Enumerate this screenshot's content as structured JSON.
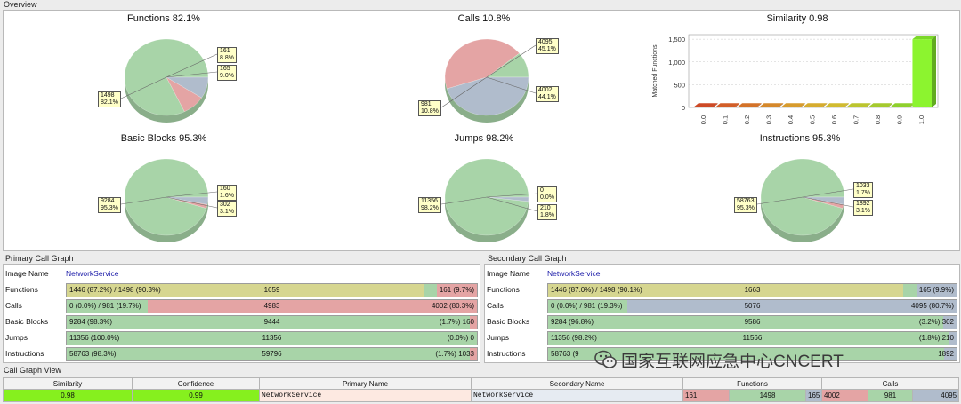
{
  "overview": {
    "label": "Overview",
    "pies": [
      {
        "key": "functions",
        "title": "Functions 82.1%",
        "slices": [
          {
            "value": 1498,
            "pct": "82.1%",
            "color": "#a8d4a8"
          },
          {
            "value": 161,
            "pct": "8.8%",
            "color": "#e4a4a4"
          },
          {
            "value": 165,
            "pct": "9.0%",
            "color": "#b0bccc"
          }
        ]
      },
      {
        "key": "calls",
        "title": "Calls 10.8%",
        "slices": [
          {
            "value": 981,
            "pct": "10.8%",
            "color": "#a8d4a8"
          },
          {
            "value": 4002,
            "pct": "44.1%",
            "color": "#e4a4a4"
          },
          {
            "value": 4095,
            "pct": "45.1%",
            "color": "#b0bccc"
          }
        ]
      },
      {
        "key": "basic_blocks",
        "title": "Basic Blocks 95.3%",
        "slices": [
          {
            "value": 9284,
            "pct": "95.3%",
            "color": "#a8d4a8"
          },
          {
            "value": 160,
            "pct": "1.6%",
            "color": "#e4a4a4"
          },
          {
            "value": 302,
            "pct": "3.1%",
            "color": "#b0bccc"
          }
        ]
      },
      {
        "key": "jumps",
        "title": "Jumps 98.2%",
        "slices": [
          {
            "value": 11356,
            "pct": "98.2%",
            "color": "#a8d4a8"
          },
          {
            "value": 0,
            "pct": "0.0%",
            "color": "#e4a4a4"
          },
          {
            "value": 210,
            "pct": "1.8%",
            "color": "#b0bccc"
          }
        ]
      },
      {
        "key": "instructions",
        "title": "Instructions 95.3%",
        "slices": [
          {
            "value": 58763,
            "pct": "95.3%",
            "color": "#a8d4a8"
          },
          {
            "value": 1033,
            "pct": "1.7%",
            "color": "#e4a4a4"
          },
          {
            "value": 1892,
            "pct": "3.1%",
            "color": "#b0bccc"
          }
        ]
      }
    ],
    "similarity": {
      "title": "Similarity 0.98",
      "ylabel": "Matched Functions",
      "yticks": [
        "0",
        "500",
        "1,000",
        "1,500"
      ],
      "categories": [
        "0.0",
        "0.1",
        "0.2",
        "0.3",
        "0.4",
        "0.5",
        "0.6",
        "0.7",
        "0.8",
        "0.9",
        "1.0"
      ],
      "values": [
        15,
        15,
        15,
        15,
        15,
        15,
        15,
        15,
        15,
        15,
        1500
      ],
      "colors": [
        "#e9542b",
        "#ef6b2e",
        "#f0812f",
        "#f29a31",
        "#f4b033",
        "#f3c435",
        "#eed436",
        "#d6e035",
        "#bce534",
        "#a3ec33",
        "#8cf42f"
      ],
      "ymax": 1600
    }
  },
  "primary": {
    "label": "Primary Call Graph",
    "image_name_label": "Image Name",
    "image_name": "NetworkService",
    "rows": [
      {
        "label": "Functions",
        "left": "1446 (87.2%) / 1498 (90.3%)",
        "mid": "1659",
        "right": "161 (9.7%)",
        "segs": [
          [
            0.873,
            "#d6d690"
          ],
          [
            0.03,
            "#a8d4a8"
          ],
          [
            0.097,
            "#e4a4a4"
          ]
        ]
      },
      {
        "label": "Calls",
        "left": "0 (0.0%) / 981 (19.7%)",
        "mid": "4983",
        "right": "4002 (80.3%)",
        "segs": [
          [
            0.197,
            "#a8d4a8"
          ],
          [
            0.803,
            "#e4a4a4"
          ]
        ]
      },
      {
        "label": "Basic Blocks",
        "left": "9284 (98.3%)",
        "mid": "9444",
        "right": "(1.7%) 160",
        "segs": [
          [
            0.983,
            "#a8d4a8"
          ],
          [
            0.017,
            "#e4a4a4"
          ]
        ]
      },
      {
        "label": "Jumps",
        "left": "11356 (100.0%)",
        "mid": "11356",
        "right": "(0.0%) 0",
        "segs": [
          [
            1.0,
            "#a8d4a8"
          ]
        ]
      },
      {
        "label": "Instructions",
        "left": "58763 (98.3%)",
        "mid": "59796",
        "right": "(1.7%) 1033",
        "segs": [
          [
            0.983,
            "#a8d4a8"
          ],
          [
            0.017,
            "#e4a4a4"
          ]
        ]
      }
    ]
  },
  "secondary": {
    "label": "Secondary Call Graph",
    "image_name_label": "Image Name",
    "image_name": "NetworkService",
    "rows": [
      {
        "label": "Functions",
        "left": "1446 (87.0%) / 1498 (90.1%)",
        "mid": "1663",
        "right": "165 (9.9%)",
        "segs": [
          [
            0.87,
            "#d6d690"
          ],
          [
            0.031,
            "#a8d4a8"
          ],
          [
            0.099,
            "#b0bccc"
          ]
        ]
      },
      {
        "label": "Calls",
        "left": "0 (0.0%) / 981 (19.3%)",
        "mid": "5076",
        "right": "4095 (80.7%)",
        "segs": [
          [
            0.193,
            "#a8d4a8"
          ],
          [
            0.807,
            "#b0bccc"
          ]
        ]
      },
      {
        "label": "Basic Blocks",
        "left": "9284 (96.8%)",
        "mid": "9586",
        "right": "(3.2%) 302",
        "segs": [
          [
            0.968,
            "#a8d4a8"
          ],
          [
            0.032,
            "#b0bccc"
          ]
        ]
      },
      {
        "label": "Jumps",
        "left": "11356 (98.2%)",
        "mid": "11566",
        "right": "(1.8%) 210",
        "segs": [
          [
            0.982,
            "#a8d4a8"
          ],
          [
            0.018,
            "#b0bccc"
          ]
        ]
      },
      {
        "label": "Instructions",
        "left": "58763 (9",
        "mid": "",
        "right": "1892",
        "segs": [
          [
            0.969,
            "#a8d4a8"
          ],
          [
            0.031,
            "#b0bccc"
          ]
        ]
      }
    ]
  },
  "call_graph_view": {
    "label": "Call Graph View",
    "headers": {
      "similarity": "Similarity",
      "confidence": "Confidence",
      "primary_name": "Primary Name",
      "secondary_name": "Secondary Name",
      "functions": "Functions",
      "calls": "Calls"
    },
    "row": {
      "similarity": "0.98",
      "confidence": "0.99",
      "primary_name": "NetworkService",
      "secondary_name": "NetworkService",
      "functions": [
        "161",
        "1498",
        "165"
      ],
      "calls": [
        "4002",
        "981",
        "4095"
      ]
    }
  },
  "watermark": "国家互联网应急中心CNCERT"
}
